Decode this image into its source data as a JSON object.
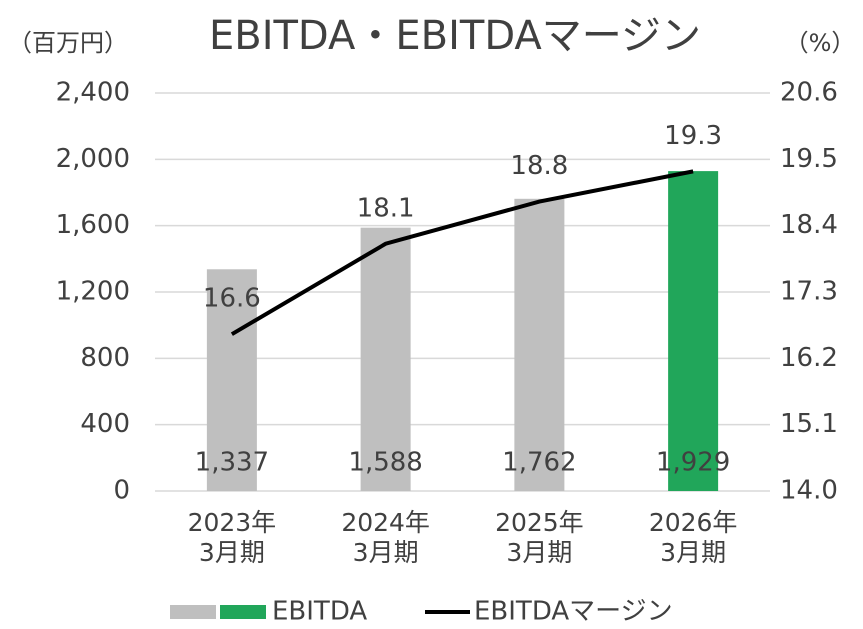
{
  "chart_data": {
    "type": "bar",
    "title": "EBITDA・EBITDAマージン",
    "y_label": "（百万円）",
    "y2_label": "（%）",
    "categories": [
      "2023年\n3月期",
      "2024年\n3月期",
      "2025年\n3月期",
      "2026年\n3月期"
    ],
    "series": [
      {
        "name": "EBITDA",
        "type": "bar",
        "colors": [
          "#bfbfbf",
          "#bfbfbf",
          "#bfbfbf",
          "#21a65a"
        ],
        "values": [
          1337,
          1588,
          1762,
          1929
        ],
        "value_labels": [
          "1,337",
          "1,588",
          "1,762",
          "1,929"
        ]
      },
      {
        "name": "EBITDAマージン",
        "type": "line",
        "axis": "y2",
        "color": "#000000",
        "values": [
          16.6,
          18.1,
          18.8,
          19.3
        ]
      }
    ],
    "ylim": [
      0,
      2400
    ],
    "yticks": [
      0,
      400,
      800,
      {
        "value": 1200,
        "label": "1,200"
      },
      {
        "value": 1600,
        "label": "1,600"
      },
      {
        "value": 2000,
        "label": "2,000"
      },
      {
        "value": 2400,
        "label": "2,400"
      }
    ],
    "y2lim": [
      14,
      20.6
    ],
    "y2ticks": [
      {
        "value": 14,
        "label": "14.0"
      },
      15.1,
      16.2,
      17.3,
      18.4,
      19.5,
      20.6
    ],
    "grid": true,
    "legend": "bottom"
  }
}
